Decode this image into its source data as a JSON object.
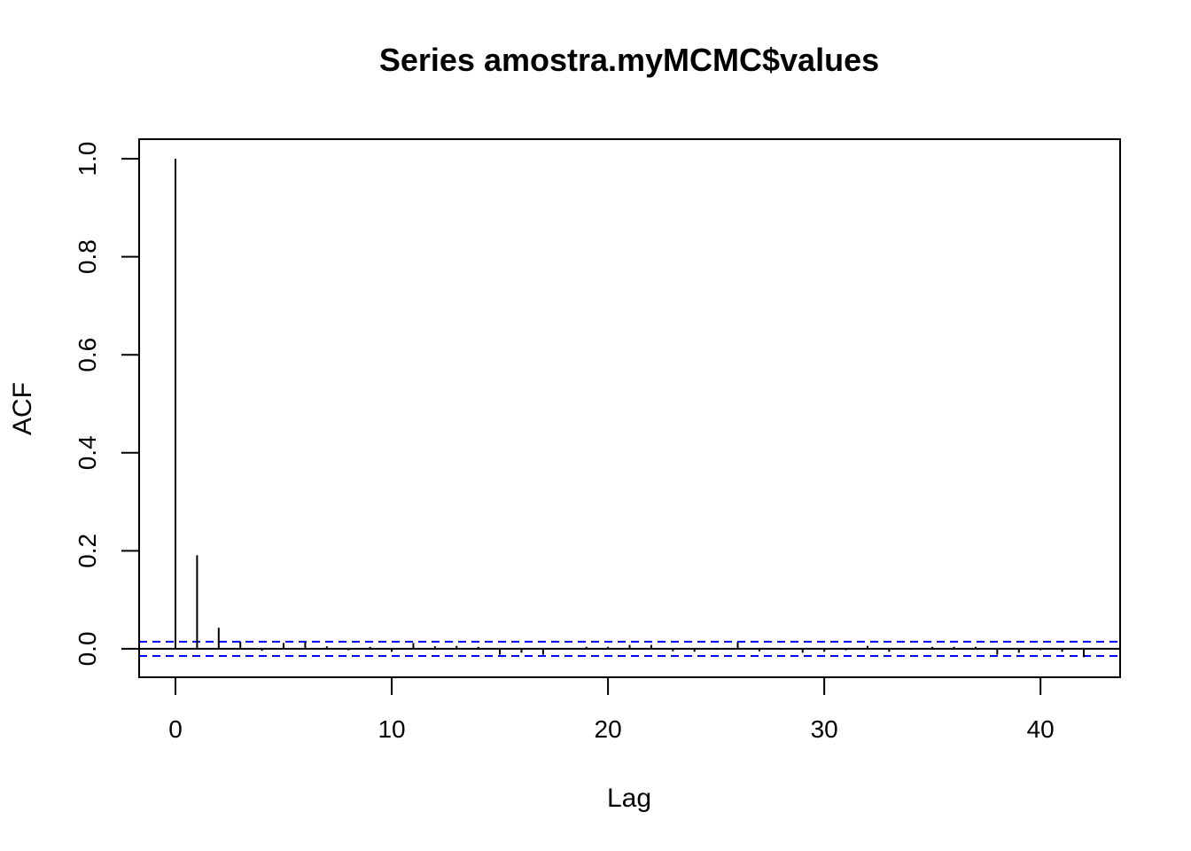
{
  "chart_data": {
    "type": "bar",
    "title": "Series  amostra.myMCMC$values",
    "xlabel": "Lag",
    "ylabel": "ACF",
    "xlim": [
      -1.68,
      43.68
    ],
    "ylim": [
      -0.058,
      1.04
    ],
    "x_ticks": [
      0,
      10,
      20,
      30,
      40
    ],
    "y_ticks": [
      0.0,
      0.2,
      0.4,
      0.6,
      0.8,
      1.0
    ],
    "x_tick_labels": [
      "0",
      "10",
      "20",
      "30",
      "40"
    ],
    "y_tick_labels": [
      "0.0",
      "0.2",
      "0.4",
      "0.6",
      "0.8",
      "1.0"
    ],
    "lags": [
      0,
      1,
      2,
      3,
      4,
      5,
      6,
      7,
      8,
      9,
      10,
      11,
      12,
      13,
      14,
      15,
      16,
      17,
      18,
      19,
      20,
      21,
      22,
      23,
      24,
      25,
      26,
      27,
      28,
      29,
      30,
      31,
      32,
      33,
      34,
      35,
      36,
      37,
      38,
      39,
      40,
      41,
      42
    ],
    "values": [
      1.0,
      0.191,
      0.043,
      0.015,
      -0.004,
      0.012,
      0.014,
      0.005,
      -0.003,
      0.004,
      -0.006,
      0.012,
      0.005,
      0.006,
      0.004,
      -0.012,
      -0.008,
      -0.012,
      0.001,
      0.004,
      0.004,
      0.008,
      0.008,
      -0.005,
      -0.006,
      -0.002,
      0.014,
      -0.005,
      -0.002,
      -0.008,
      -0.006,
      -0.003,
      0.006,
      -0.006,
      -0.002,
      0.004,
      0.004,
      0.004,
      -0.012,
      -0.008,
      -0.003,
      -0.006,
      -0.017
    ],
    "confidence_bounds": [
      0.0145,
      -0.0145
    ],
    "colors": {
      "bars": "#000000",
      "confidence_line": "#0000ff",
      "axes": "#000000"
    }
  }
}
